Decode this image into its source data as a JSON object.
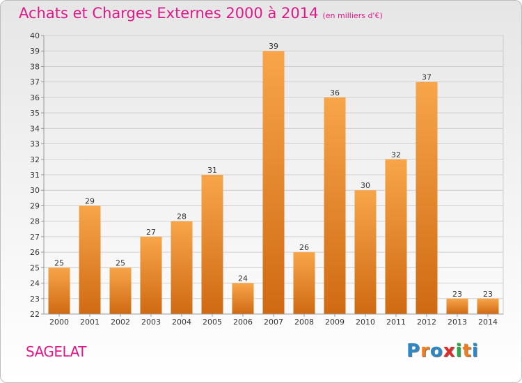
{
  "title": "Achats et Charges Externes 2000 à 2014",
  "subtitle": "(en milliers d'€)",
  "commune": "SAGELAT",
  "logo": {
    "letters": [
      "P",
      "r",
      "o",
      "x",
      "i",
      "t",
      "i"
    ],
    "colors": [
      "#2a88c9",
      "#f07d1a",
      "#2a88c9",
      "#e02a2a",
      "#2aa84a",
      "#f07d1a",
      "#2a88c9"
    ]
  },
  "colors": {
    "accent": "#e0188a",
    "bar": "#f5952f",
    "bar_dark": "#c7630c",
    "label": "#333333"
  },
  "chart_data": {
    "type": "bar",
    "title": "Achats et Charges Externes 2000 à 2014",
    "subtitle": "(en milliers d'€)",
    "categories": [
      "2000",
      "2001",
      "2002",
      "2003",
      "2004",
      "2005",
      "2006",
      "2007",
      "2008",
      "2009",
      "2010",
      "2011",
      "2012",
      "2013",
      "2014"
    ],
    "values": [
      25,
      29,
      25,
      27,
      28,
      31,
      24,
      39,
      26,
      36,
      30,
      32,
      37,
      23,
      23
    ],
    "ylim": [
      22,
      40
    ],
    "yticks": [
      22,
      23,
      24,
      25,
      26,
      27,
      28,
      29,
      30,
      31,
      32,
      33,
      34,
      35,
      36,
      37,
      38,
      39,
      40
    ],
    "grid": true,
    "data_labels": true
  }
}
